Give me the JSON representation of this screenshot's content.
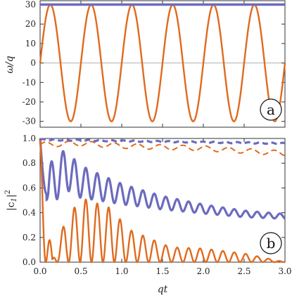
{
  "chart_data": [
    {
      "panel": "a",
      "type": "line",
      "xlim": [
        0,
        3.0
      ],
      "ylim": [
        -33,
        32
      ],
      "yticks": [
        -30,
        -20,
        -10,
        0,
        10,
        20,
        30
      ],
      "ylabel": "ω/q",
      "zero_line": true,
      "series": [
        {
          "style": "solid",
          "color": "#6b6bbf",
          "samples_x": [
            0,
            3.0
          ],
          "samples_y": [
            30,
            30
          ]
        },
        {
          "style": "solid",
          "color": "#e06a1e",
          "form": "30*sin(2*pi*x/0.5)",
          "amplitude": 30,
          "period": 0.5
        }
      ]
    },
    {
      "panel": "b",
      "type": "line",
      "xlim": [
        0,
        3.0
      ],
      "ylim": [
        0,
        1.0
      ],
      "xticks": [
        "0.0",
        "0.5",
        "1.0",
        "1.5",
        "2.0",
        "2.5",
        "3.0"
      ],
      "yticks": [
        "0.0",
        "0.2",
        "0.4",
        "0.6",
        "0.8",
        "1.0"
      ],
      "xlabel": "qt",
      "ylabel": "|c",
      "ylabel_sub": "1",
      "ylabel_tail": "|",
      "ylabel_sup": "2",
      "series": [
        {
          "style": "solid",
          "color": "#6b6bbf",
          "samples_x": [
            0,
            0.1,
            0.3,
            0.5,
            1.0,
            1.5,
            2.0,
            2.5,
            3.0
          ],
          "samples_y": [
            1.0,
            0.6,
            0.75,
            0.65,
            0.55,
            0.48,
            0.43,
            0.39,
            0.37
          ],
          "oscillation_period": 0.14
        },
        {
          "style": "solid",
          "color": "#e06a1e",
          "samples_x": [
            0,
            0.15,
            0.3,
            0.5,
            0.85,
            1.1,
            1.6,
            2.0,
            2.5,
            3.0
          ],
          "samples_y": [
            1.0,
            0.02,
            0.32,
            0.52,
            0.44,
            0.26,
            0.12,
            0.11,
            0.07,
            0.0
          ],
          "oscillation_period": 0.14
        },
        {
          "style": "dashed",
          "color": "#6b6bbf",
          "samples_x": [
            0,
            0.5,
            1.0,
            1.5,
            2.0,
            2.5,
            3.0
          ],
          "samples_y": [
            0.99,
            0.985,
            0.98,
            0.975,
            0.97,
            0.965,
            0.96
          ]
        },
        {
          "style": "dashed",
          "color": "#e06a1e",
          "samples_x": [
            0,
            0.5,
            1.0,
            1.5,
            2.0,
            2.5,
            3.0
          ],
          "samples_y": [
            0.95,
            0.96,
            0.94,
            0.93,
            0.92,
            0.9,
            0.88
          ]
        }
      ]
    }
  ],
  "panels": {
    "a": {
      "letter": "a"
    },
    "b": {
      "letter": "b"
    }
  },
  "colors": {
    "blue": "#6b6bbf",
    "orange": "#e06a1e",
    "frame": "#333333",
    "zero": "#b0b0b0"
  }
}
